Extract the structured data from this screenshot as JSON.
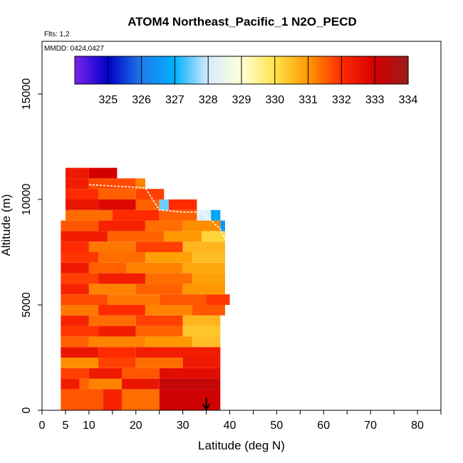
{
  "chart_data": {
    "type": "heatmap",
    "title": "ATOM4 Northeast_Pacific_1 N2O_PECD",
    "flights_label": "Flts: 1,2",
    "dates_label": "MMDD: 0424,0427",
    "xlabel": "Latitude (deg N)",
    "ylabel": "Altitude (m)",
    "xlim": [
      0,
      85
    ],
    "ylim": [
      0,
      17500
    ],
    "x_ticks": [
      0,
      5,
      10,
      20,
      30,
      40,
      50,
      60,
      70,
      80
    ],
    "x_minor_ticks": [
      15,
      25,
      35,
      45,
      55,
      65,
      75,
      85
    ],
    "y_ticks": [
      0,
      5000,
      10000,
      15000
    ],
    "colorbar": {
      "min": 324,
      "max": 334,
      "tick_values": [
        325,
        326,
        327,
        328,
        329,
        330,
        331,
        332,
        333,
        334
      ],
      "stops": [
        "#7b24f0",
        "#0000c8",
        "#1f7be8",
        "#00b0ff",
        "#d6ecff",
        "#ffffd8",
        "#ffe44a",
        "#ff9800",
        "#ff2a00",
        "#d40000",
        "#9e1a1a"
      ]
    },
    "bands": [
      {
        "y0": 0,
        "y1": 1000,
        "cells": [
          [
            4,
            13,
            331.6
          ],
          [
            13,
            17,
            332.2
          ],
          [
            17,
            25,
            331.4
          ],
          [
            25,
            38,
            333.1
          ]
        ]
      },
      {
        "y0": 1000,
        "y1": 1500,
        "cells": [
          [
            4,
            8,
            332.3
          ],
          [
            8,
            10,
            331.5
          ],
          [
            10,
            17,
            331.2
          ],
          [
            17,
            25,
            332.5
          ],
          [
            25,
            38,
            333.3
          ]
        ]
      },
      {
        "y0": 1500,
        "y1": 2000,
        "cells": [
          [
            4,
            10,
            331.8
          ],
          [
            10,
            17,
            332.4
          ],
          [
            17,
            25,
            331.6
          ],
          [
            25,
            38,
            332.7
          ]
        ]
      },
      {
        "y0": 2000,
        "y1": 2500,
        "cells": [
          [
            4,
            12,
            331.1
          ],
          [
            12,
            20,
            331.8
          ],
          [
            20,
            30,
            331.4
          ],
          [
            30,
            38,
            332.4
          ]
        ]
      },
      {
        "y0": 2500,
        "y1": 3000,
        "cells": [
          [
            4,
            12,
            332.5
          ],
          [
            12,
            20,
            332.0
          ],
          [
            20,
            38,
            332.3
          ]
        ]
      },
      {
        "y0": 3000,
        "y1": 3500,
        "cells": [
          [
            4,
            10,
            331.5
          ],
          [
            10,
            22,
            331.2
          ],
          [
            22,
            32,
            331.0
          ],
          [
            32,
            38,
            330.5
          ]
        ]
      },
      {
        "y0": 3500,
        "y1": 4000,
        "cells": [
          [
            4,
            12,
            331.9
          ],
          [
            12,
            20,
            332.3
          ],
          [
            20,
            30,
            331.5
          ],
          [
            30,
            38,
            330.4
          ]
        ]
      },
      {
        "y0": 4000,
        "y1": 4500,
        "cells": [
          [
            4,
            10,
            332.2
          ],
          [
            10,
            20,
            331.4
          ],
          [
            20,
            30,
            331.8
          ],
          [
            30,
            38,
            330.6
          ]
        ]
      },
      {
        "y0": 4500,
        "y1": 5000,
        "cells": [
          [
            4,
            12,
            331.3
          ],
          [
            12,
            22,
            332.0
          ],
          [
            22,
            32,
            331.2
          ],
          [
            32,
            39,
            331.6
          ]
        ]
      },
      {
        "y0": 5000,
        "y1": 5500,
        "cells": [
          [
            4,
            14,
            331.7
          ],
          [
            14,
            25,
            331.3
          ],
          [
            25,
            35,
            331.6
          ],
          [
            35,
            40,
            331.9
          ]
        ]
      },
      {
        "y0": 5500,
        "y1": 6000,
        "cells": [
          [
            4,
            10,
            332.2
          ],
          [
            10,
            20,
            331.2
          ],
          [
            20,
            30,
            331.5
          ],
          [
            30,
            39,
            331.0
          ]
        ]
      },
      {
        "y0": 6000,
        "y1": 6500,
        "cells": [
          [
            4,
            12,
            331.8
          ],
          [
            12,
            22,
            332.3
          ],
          [
            22,
            32,
            331.4
          ],
          [
            32,
            39,
            330.9
          ]
        ]
      },
      {
        "y0": 6500,
        "y1": 7000,
        "cells": [
          [
            4,
            10,
            332.4
          ],
          [
            10,
            18,
            331.5
          ],
          [
            18,
            30,
            331.2
          ],
          [
            30,
            39,
            330.8
          ]
        ]
      },
      {
        "y0": 7000,
        "y1": 7500,
        "cells": [
          [
            4,
            12,
            331.9
          ],
          [
            12,
            22,
            331.4
          ],
          [
            22,
            32,
            330.9
          ],
          [
            32,
            39,
            330.5
          ]
        ]
      },
      {
        "y0": 7500,
        "y1": 8000,
        "cells": [
          [
            4,
            10,
            332.0
          ],
          [
            10,
            20,
            331.3
          ],
          [
            20,
            30,
            331.8
          ],
          [
            30,
            39,
            330.6
          ]
        ]
      },
      {
        "y0": 8000,
        "y1": 8500,
        "cells": [
          [
            4,
            14,
            332.3
          ],
          [
            14,
            26,
            331.5
          ],
          [
            26,
            34,
            331.0
          ],
          [
            34,
            39,
            330.2
          ]
        ]
      },
      {
        "y0": 8500,
        "y1": 9000,
        "cells": [
          [
            4,
            12,
            331.6
          ],
          [
            12,
            22,
            332.2
          ],
          [
            22,
            30,
            331.4
          ],
          [
            30,
            38,
            331.1
          ],
          [
            38,
            39,
            326.5
          ]
        ]
      },
      {
        "y0": 9000,
        "y1": 9500,
        "cells": [
          [
            5,
            15,
            331.4
          ],
          [
            15,
            25,
            332.0
          ],
          [
            25,
            33,
            331.5
          ],
          [
            33,
            36,
            328.2
          ],
          [
            36,
            38,
            326.8
          ]
        ]
      },
      {
        "y0": 9500,
        "y1": 10000,
        "cells": [
          [
            5,
            12,
            332.5
          ],
          [
            12,
            20,
            332.8
          ],
          [
            20,
            25,
            331.5
          ],
          [
            25,
            27,
            327.5
          ],
          [
            27,
            33,
            332.0
          ]
        ]
      },
      {
        "y0": 10000,
        "y1": 10500,
        "cells": [
          [
            5,
            12,
            332.0
          ],
          [
            12,
            20,
            331.5
          ],
          [
            20,
            26,
            331.8
          ]
        ]
      },
      {
        "y0": 10500,
        "y1": 11000,
        "cells": [
          [
            5,
            10,
            332.3
          ],
          [
            10,
            20,
            331.7
          ],
          [
            20,
            22,
            331.2
          ]
        ]
      },
      {
        "y0": 11000,
        "y1": 11500,
        "cells": [
          [
            5,
            10,
            332.4
          ],
          [
            10,
            16,
            333.0
          ]
        ]
      }
    ],
    "flight_track": [
      [
        10,
        10700
      ],
      [
        14,
        10650
      ],
      [
        18,
        10600
      ],
      [
        22,
        10550
      ],
      [
        25,
        9500
      ],
      [
        30,
        9400
      ],
      [
        34,
        9400
      ],
      [
        38,
        8600
      ],
      [
        39,
        8100
      ]
    ],
    "arrow_marker": {
      "x": 35,
      "y_from": 600,
      "y_to": 0
    }
  }
}
